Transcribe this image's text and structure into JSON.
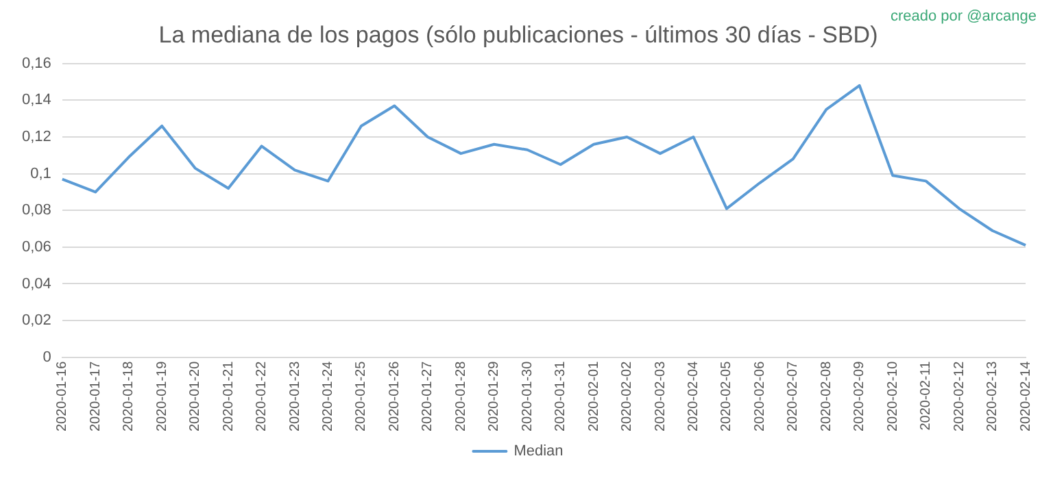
{
  "chart_data": {
    "type": "line",
    "title": "La mediana de los pagos (sólo publicaciones - últimos 30 días - SBD)",
    "annotations": [
      "creado por @arcange"
    ],
    "categories": [
      "2020-01-16",
      "2020-01-17",
      "2020-01-18",
      "2020-01-19",
      "2020-01-20",
      "2020-01-21",
      "2020-01-22",
      "2020-01-23",
      "2020-01-24",
      "2020-01-25",
      "2020-01-26",
      "2020-01-27",
      "2020-01-28",
      "2020-01-29",
      "2020-01-30",
      "2020-01-31",
      "2020-02-01",
      "2020-02-02",
      "2020-02-03",
      "2020-02-04",
      "2020-02-05",
      "2020-02-06",
      "2020-02-07",
      "2020-02-08",
      "2020-02-09",
      "2020-02-10",
      "2020-02-11",
      "2020-02-12",
      "2020-02-13",
      "2020-02-14"
    ],
    "series": [
      {
        "name": "Median",
        "color": "#5b9bd5",
        "values": [
          0.097,
          0.09,
          0.109,
          0.126,
          0.103,
          0.092,
          0.115,
          0.102,
          0.096,
          0.126,
          0.137,
          0.12,
          0.111,
          0.116,
          0.113,
          0.105,
          0.116,
          0.12,
          0.111,
          0.12,
          0.081,
          0.095,
          0.108,
          0.135,
          0.148,
          0.099,
          0.096,
          0.081,
          0.069,
          0.061
        ]
      }
    ],
    "ylim": [
      0,
      0.16
    ],
    "yticks": [
      {
        "value": 0,
        "label": "0"
      },
      {
        "value": 0.02,
        "label": "0,02"
      },
      {
        "value": 0.04,
        "label": "0,04"
      },
      {
        "value": 0.06,
        "label": "0,06"
      },
      {
        "value": 0.08,
        "label": "0,08"
      },
      {
        "value": 0.1,
        "label": "0,1"
      },
      {
        "value": 0.12,
        "label": "0,12"
      },
      {
        "value": 0.14,
        "label": "0,14"
      },
      {
        "value": 0.16,
        "label": "0,16"
      }
    ],
    "grid": "y",
    "legend": "bottom",
    "marker": "none",
    "line_style": "solid"
  }
}
